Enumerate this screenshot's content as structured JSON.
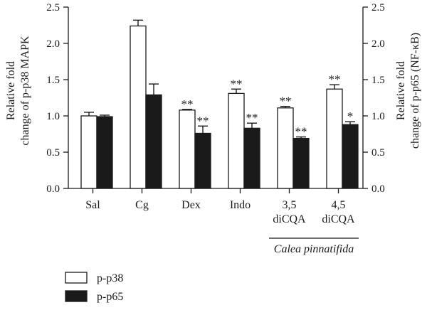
{
  "chart_data": {
    "type": "bar",
    "categories": [
      "Sal",
      "Cg",
      "Dex",
      "Indo",
      "3,5\ndiCQA",
      "4,5\ndiCQA"
    ],
    "group_label": "Calea pinnatifida",
    "group_categories": [
      4,
      5
    ],
    "series": [
      {
        "name": "p-p38",
        "fill": "#ffffff",
        "values": [
          1.0,
          2.24,
          1.08,
          1.31,
          1.11,
          1.37
        ],
        "errors": [
          0.05,
          0.08,
          0.01,
          0.06,
          0.02,
          0.06
        ],
        "significance": [
          "",
          "",
          "**",
          "**",
          "**",
          "**"
        ]
      },
      {
        "name": "p-p65",
        "fill": "#1a1a1a",
        "values": [
          0.99,
          1.29,
          0.76,
          0.83,
          0.69,
          0.88
        ],
        "errors": [
          0.02,
          0.15,
          0.1,
          0.07,
          0.02,
          0.04
        ],
        "significance": [
          "",
          "",
          "**",
          "**",
          "**",
          "*"
        ]
      }
    ],
    "ylabel_left": "Relative fold\nchange of p-p38 MAPK",
    "ylabel_right": "Relative fold\nchange of p-p65 (NF-κB)",
    "ylim": [
      0,
      2.5
    ],
    "yticks": [
      "0.0",
      "0.5",
      "1.0",
      "1.5",
      "2.0",
      "2.5"
    ],
    "legend_position": "bottom-left",
    "grid": false
  }
}
